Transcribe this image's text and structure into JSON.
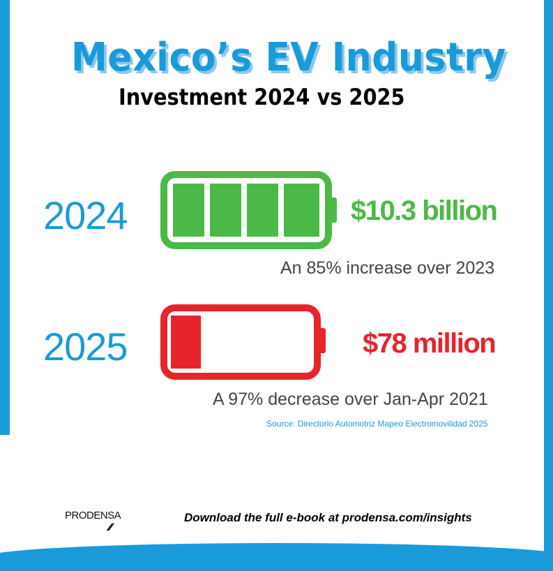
{
  "title": "Mexico’s EV Industry",
  "subtitle": "Investment 2024 vs 2025",
  "colors": {
    "accent": "#1a9ad9",
    "green": "#4cb848",
    "red": "#e8242b"
  },
  "rows": [
    {
      "year": "2024",
      "amount": "$10.3 billion",
      "note": "An 85% increase over 2023",
      "battery_level_segments": 4,
      "battery_segments_total": 4,
      "color": "#4cb848"
    },
    {
      "year": "2025",
      "amount": "$78 million",
      "note": "A 97% decrease over Jan-Apr 2021",
      "battery_level_fraction": 0.2,
      "color": "#e8242b"
    }
  ],
  "source": "Source: Directorio Automotriz Mapeo Electromovilidad 2025",
  "footer": {
    "logo": "PRODENSA",
    "cta": "Download the full e-book at prodensa.com/insights"
  }
}
